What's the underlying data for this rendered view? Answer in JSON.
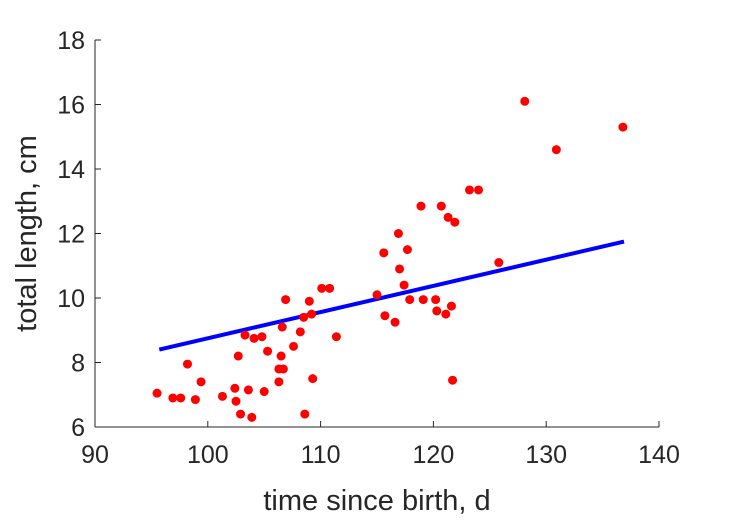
{
  "chart_data": {
    "type": "scatter",
    "xlabel": "time since birth, d",
    "ylabel": "total length, cm",
    "xlim": [
      90,
      140
    ],
    "ylim": [
      6,
      18
    ],
    "xticks": [
      90,
      100,
      110,
      120,
      130,
      140
    ],
    "yticks": [
      6,
      8,
      10,
      12,
      14,
      16,
      18
    ],
    "grid": false,
    "series": [
      {
        "type": "scatter",
        "color": "#ff0000",
        "points": [
          [
            95.5,
            7.05
          ],
          [
            96.9,
            6.9
          ],
          [
            97.6,
            6.9
          ],
          [
            98.2,
            7.95
          ],
          [
            98.9,
            6.85
          ],
          [
            99.4,
            7.4
          ],
          [
            101.3,
            6.95
          ],
          [
            102.4,
            7.2
          ],
          [
            102.5,
            6.8
          ],
          [
            102.7,
            8.2
          ],
          [
            102.9,
            6.4
          ],
          [
            103.3,
            8.85
          ],
          [
            103.6,
            7.15
          ],
          [
            103.9,
            6.3
          ],
          [
            104.1,
            8.75
          ],
          [
            104.8,
            8.8
          ],
          [
            105.0,
            7.1
          ],
          [
            105.3,
            8.35
          ],
          [
            106.3,
            7.8
          ],
          [
            106.3,
            7.4
          ],
          [
            106.5,
            8.2
          ],
          [
            106.6,
            9.1
          ],
          [
            106.7,
            7.8
          ],
          [
            106.9,
            9.95
          ],
          [
            107.6,
            8.5
          ],
          [
            108.2,
            8.95
          ],
          [
            108.5,
            9.4
          ],
          [
            108.6,
            6.4
          ],
          [
            109.0,
            9.9
          ],
          [
            109.2,
            9.5
          ],
          [
            109.3,
            7.5
          ],
          [
            110.1,
            10.3
          ],
          [
            110.8,
            10.3
          ],
          [
            111.4,
            8.8
          ],
          [
            115.0,
            10.1
          ],
          [
            115.6,
            11.4
          ],
          [
            115.7,
            9.45
          ],
          [
            116.6,
            9.25
          ],
          [
            116.9,
            12.0
          ],
          [
            117.0,
            10.9
          ],
          [
            117.4,
            10.4
          ],
          [
            117.7,
            11.5
          ],
          [
            117.9,
            9.95
          ],
          [
            118.9,
            12.85
          ],
          [
            119.1,
            9.95
          ],
          [
            120.2,
            9.95
          ],
          [
            120.3,
            9.6
          ],
          [
            120.7,
            12.85
          ],
          [
            121.1,
            9.5
          ],
          [
            121.3,
            12.5
          ],
          [
            121.6,
            9.75
          ],
          [
            121.7,
            7.45
          ],
          [
            121.9,
            12.35
          ],
          [
            123.2,
            13.35
          ],
          [
            124.0,
            13.35
          ],
          [
            125.8,
            11.1
          ],
          [
            128.1,
            16.1
          ],
          [
            130.9,
            14.6
          ],
          [
            136.8,
            15.3
          ]
        ]
      },
      {
        "type": "line",
        "color": "#0000ff",
        "points": [
          [
            95.7,
            8.4
          ],
          [
            136.9,
            11.75
          ]
        ]
      }
    ]
  }
}
